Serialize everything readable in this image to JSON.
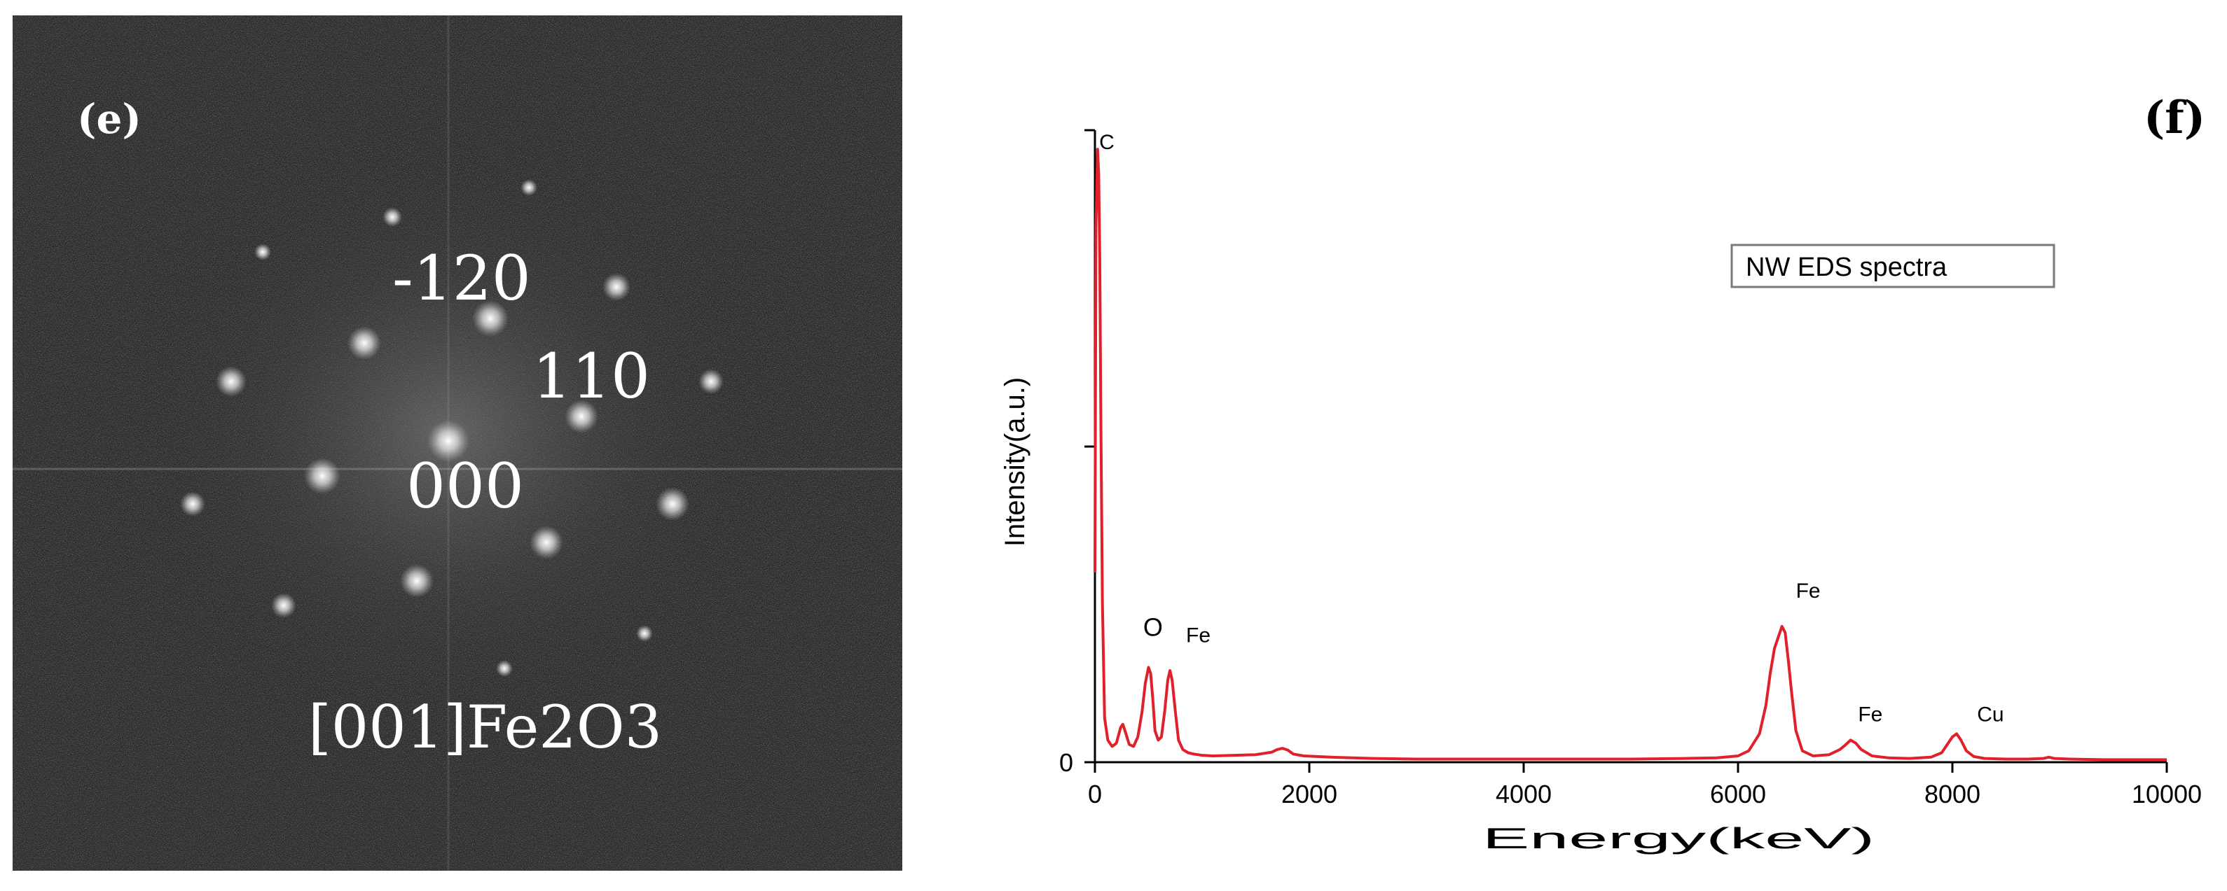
{
  "panel_e": {
    "label": "(e)",
    "spot_labels": [
      "-120",
      "110",
      "000"
    ],
    "zone_axis": "[001]Fe2O3"
  },
  "chart_data": {
    "type": "line",
    "panel_label": "(f)",
    "title": "",
    "legend_text": "NW EDS spectra",
    "legend_placement": "top-right",
    "xlabel": "Energy(keV)",
    "ylabel": "Intensity(a.u.)",
    "xlim": [
      0,
      10000
    ],
    "ylim": [
      0,
      1.0
    ],
    "x_ticks": [
      0,
      2000,
      4000,
      6000,
      8000,
      10000
    ],
    "x_tick_labels": [
      "0",
      "2000",
      "4000",
      "6000",
      "8000",
      "10000"
    ],
    "y_tick_labels": [
      "0"
    ],
    "grid": false,
    "line_color": "#e0202a",
    "series": [
      {
        "x": [
          0,
          10,
          25,
          35,
          45,
          55,
          70,
          90,
          120,
          160,
          200,
          240,
          260,
          280,
          320,
          360,
          400,
          440,
          470,
          500,
          520,
          540,
          560,
          590,
          620,
          650,
          680,
          700,
          720,
          750,
          780,
          820,
          870,
          920,
          960,
          1000,
          1100,
          1300,
          1500,
          1650,
          1700,
          1750,
          1800,
          1850,
          1950,
          2200,
          2600,
          3000,
          3500,
          4000,
          4500,
          5000,
          5500,
          5800,
          6000,
          6100,
          6200,
          6260,
          6300,
          6340,
          6380,
          6410,
          6440,
          6470,
          6500,
          6540,
          6600,
          6700,
          6850,
          6950,
          7000,
          7050,
          7100,
          7150,
          7250,
          7400,
          7600,
          7800,
          7900,
          7960,
          8000,
          8040,
          8080,
          8130,
          8200,
          8300,
          8500,
          8700,
          8850,
          8900,
          8950,
          9100,
          9400,
          9700,
          10000
        ],
        "y": [
          0.3,
          0.85,
          0.97,
          0.93,
          0.8,
          0.55,
          0.25,
          0.07,
          0.035,
          0.025,
          0.03,
          0.055,
          0.06,
          0.05,
          0.028,
          0.025,
          0.04,
          0.08,
          0.125,
          0.15,
          0.14,
          0.1,
          0.05,
          0.035,
          0.04,
          0.08,
          0.13,
          0.145,
          0.13,
          0.08,
          0.035,
          0.02,
          0.015,
          0.013,
          0.012,
          0.011,
          0.01,
          0.011,
          0.012,
          0.016,
          0.02,
          0.022,
          0.019,
          0.013,
          0.01,
          0.008,
          0.006,
          0.005,
          0.005,
          0.005,
          0.005,
          0.005,
          0.006,
          0.007,
          0.01,
          0.018,
          0.045,
          0.09,
          0.14,
          0.18,
          0.2,
          0.215,
          0.205,
          0.16,
          0.11,
          0.05,
          0.018,
          0.01,
          0.012,
          0.02,
          0.027,
          0.035,
          0.03,
          0.02,
          0.01,
          0.007,
          0.006,
          0.008,
          0.015,
          0.03,
          0.04,
          0.045,
          0.035,
          0.018,
          0.009,
          0.006,
          0.005,
          0.005,
          0.006,
          0.008,
          0.006,
          0.005,
          0.004,
          0.004,
          0.004
        ]
      }
    ],
    "peak_labels": [
      {
        "text": "C",
        "x": 40,
        "y": 0.97
      },
      {
        "text": "O",
        "x": 450,
        "y": 0.2
      },
      {
        "text": "Fe",
        "x": 850,
        "y": 0.19
      },
      {
        "text": "Fe",
        "x": 6540,
        "y": 0.26
      },
      {
        "text": "Fe",
        "x": 7120,
        "y": 0.065
      },
      {
        "text": "Cu",
        "x": 8230,
        "y": 0.065
      }
    ]
  }
}
